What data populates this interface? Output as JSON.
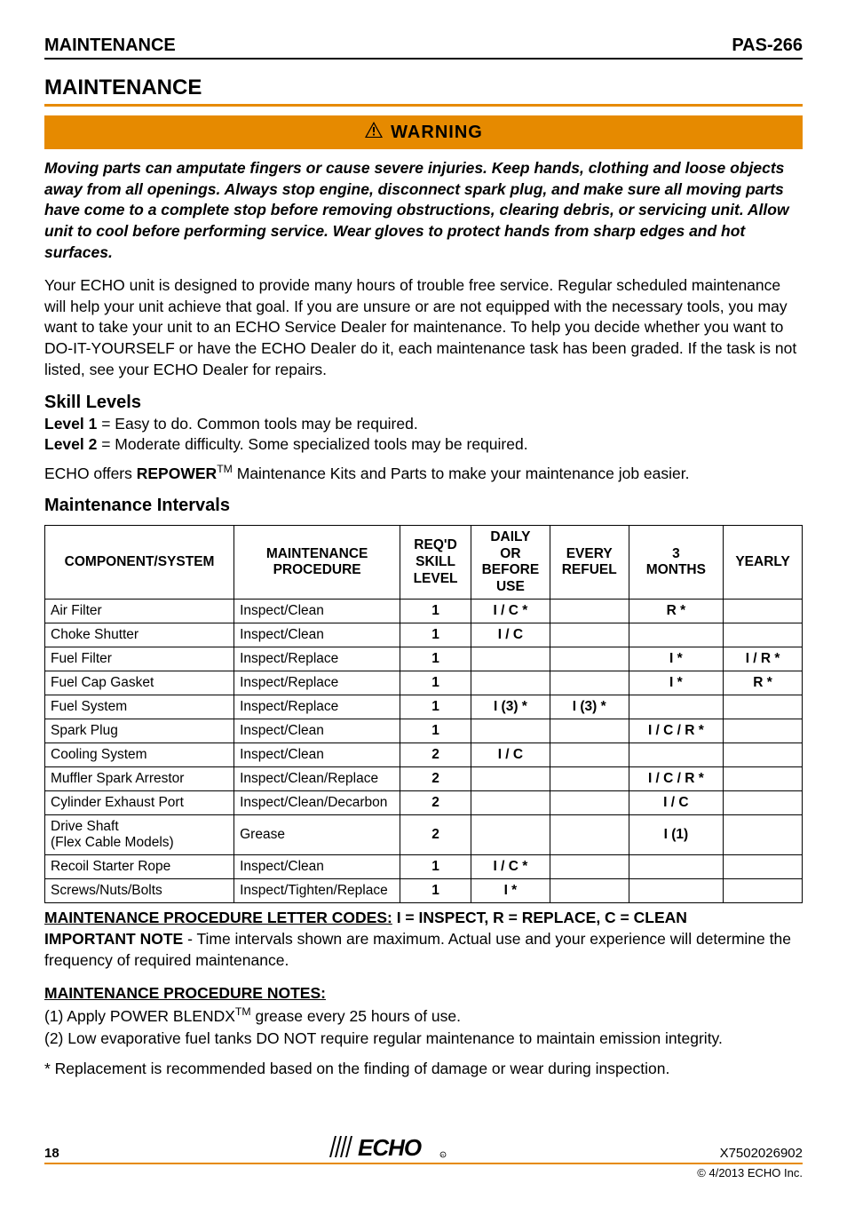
{
  "header": {
    "left": "MAINTENANCE",
    "right": "PAS-266"
  },
  "main_title": "MAINTENANCE",
  "warning": {
    "label": "WARNING",
    "text": "Moving parts can amputate fingers or cause severe injuries. Keep hands, clothing and loose objects away from all openings. Always stop engine, disconnect spark plug, and make sure all moving parts have come to a complete stop before removing obstructions, clearing debris, or servicing unit. Allow unit to cool before performing service. Wear gloves to protect hands from sharp edges and hot surfaces."
  },
  "intro": "Your ECHO unit is designed to provide many hours of trouble free service. Regular scheduled maintenance will help your unit achieve that goal. If you are unsure or are not equipped with the necessary tools, you may want to take your unit to an ECHO Service Dealer for maintenance. To help you decide whether you want to DO-IT-YOURSELF or have the ECHO Dealer do it, each maintenance task has been graded. If the task is not listed, see your ECHO Dealer for repairs.",
  "skill": {
    "heading": "Skill Levels",
    "level1_label": "Level 1",
    "level1_text": " = Easy to do. Common tools may be required.",
    "level2_label": "Level 2",
    "level2_text": " = Moderate difficulty. Some specialized tools may be required.",
    "repower_pre": "ECHO offers ",
    "repower_bold": "REPOWER",
    "repower_tm": "TM",
    "repower_post": " Maintenance Kits and Parts to make your maintenance job easier."
  },
  "intervals": {
    "heading": "Maintenance Intervals",
    "columns": [
      "COMPONENT/SYSTEM",
      "MAINTENANCE PROCEDURE",
      "REQ'D SKILL LEVEL",
      "DAILY OR BEFORE USE",
      "EVERY REFUEL",
      "3 MONTHS",
      "YEARLY"
    ],
    "rows": [
      [
        "Air Filter",
        "Inspect/Clean",
        "1",
        "I / C *",
        "",
        "R *",
        ""
      ],
      [
        "Choke Shutter",
        "Inspect/Clean",
        "1",
        "I / C",
        "",
        "",
        ""
      ],
      [
        "Fuel Filter",
        "Inspect/Replace",
        "1",
        "",
        "",
        "I *",
        "I / R *"
      ],
      [
        "Fuel Cap Gasket",
        "Inspect/Replace",
        "1",
        "",
        "",
        "I *",
        "R *"
      ],
      [
        "Fuel System",
        "Inspect/Replace",
        "1",
        "I (3) *",
        "I (3) *",
        "",
        ""
      ],
      [
        "Spark Plug",
        "Inspect/Clean",
        "1",
        "",
        "",
        "I / C / R *",
        ""
      ],
      [
        "Cooling System",
        "Inspect/Clean",
        "2",
        "I / C",
        "",
        "",
        ""
      ],
      [
        "Muffler Spark Arrestor",
        "Inspect/Clean/Replace",
        "2",
        "",
        "",
        "I / C / R *",
        ""
      ],
      [
        "Cylinder Exhaust Port",
        "Inspect/Clean/Decarbon",
        "2",
        "",
        "",
        "I / C",
        ""
      ],
      [
        "Drive Shaft\n(Flex Cable Models)",
        "Grease",
        "2",
        "",
        "",
        "I (1)",
        ""
      ],
      [
        "Recoil Starter Rope",
        "Inspect/Clean",
        "1",
        "I / C *",
        "",
        "",
        ""
      ],
      [
        "Screws/Nuts/Bolts",
        "Inspect/Tighten/Replace",
        "1",
        "I *",
        "",
        "",
        ""
      ]
    ]
  },
  "codes": {
    "label": "MAINTENANCE PROCEDURE LETTER CODES:",
    "text": " I = INSPECT, R = REPLACE, C = CLEAN"
  },
  "important": {
    "label": "IMPORTANT NOTE",
    "text": " - Time intervals shown are maximum. Actual use and your experience will determine the frequency of required maintenance."
  },
  "notes": {
    "heading": "MAINTENANCE PROCEDURE NOTES:",
    "n1_pre": "(1) Apply POWER BLENDX",
    "n1_tm": "TM",
    "n1_post": " grease every 25 hours of use.",
    "n2": "(2) Low evaporative fuel tanks DO NOT require regular maintenance to maintain emission integrity.",
    "star": "* Replacement is recommended based on the finding of damage or wear during inspection."
  },
  "footer": {
    "page": "18",
    "doc_id": "X7502026902",
    "copyright": "© 4/2013 ECHO Inc.",
    "logo_text": "ECHO"
  },
  "colors": {
    "accent": "#e68a00",
    "text": "#000000"
  }
}
